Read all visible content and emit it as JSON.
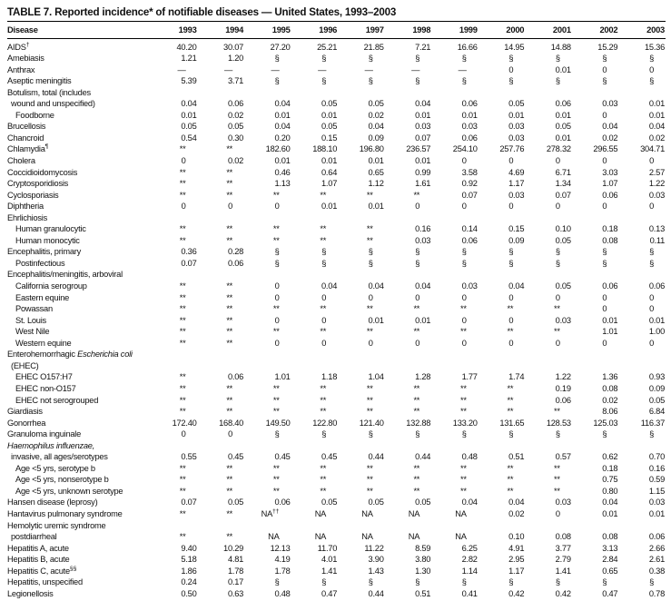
{
  "title": "TABLE 7. Reported incidence* of notifiable diseases — United States, 1993–2003",
  "columns": [
    "Disease",
    "1993",
    "1994",
    "1995",
    "1996",
    "1997",
    "1998",
    "1999",
    "2000",
    "2001",
    "2002",
    "2003"
  ],
  "rows": [
    {
      "label": "AIDS",
      "sup": "†",
      "indent": 0,
      "values": [
        "40.20",
        "30.07",
        "27.20",
        "25.21",
        "21.85",
        "7.21",
        "16.66",
        "14.95",
        "14.88",
        "15.29",
        "15.36"
      ]
    },
    {
      "label": "Amebiasis",
      "indent": 0,
      "values": [
        "1.21",
        "1.20",
        "§",
        "§",
        "§",
        "§",
        "§",
        "§",
        "§",
        "§",
        "§"
      ]
    },
    {
      "label": "Anthrax",
      "indent": 0,
      "values": [
        "—",
        "—",
        "—",
        "—",
        "—",
        "—",
        "—",
        "0",
        "0.01",
        "0",
        "0"
      ]
    },
    {
      "label": "Aseptic meningitis",
      "indent": 0,
      "values": [
        "5.39",
        "3.71",
        "§",
        "§",
        "§",
        "§",
        "§",
        "§",
        "§",
        "§",
        "§"
      ]
    },
    {
      "label": "Botulism, total (includes",
      "indent": 0,
      "values": []
    },
    {
      "label": "wound and unspecified)",
      "indent": 1,
      "values": [
        "0.04",
        "0.06",
        "0.04",
        "0.05",
        "0.05",
        "0.04",
        "0.06",
        "0.05",
        "0.06",
        "0.03",
        "0.01"
      ]
    },
    {
      "label": "Foodborne",
      "indent": 2,
      "values": [
        "0.01",
        "0.02",
        "0.01",
        "0.01",
        "0.02",
        "0.01",
        "0.01",
        "0.01",
        "0.01",
        "0",
        "0.01"
      ]
    },
    {
      "label": "Brucellosis",
      "indent": 0,
      "values": [
        "0.05",
        "0.05",
        "0.04",
        "0.05",
        "0.04",
        "0.03",
        "0.03",
        "0.03",
        "0.05",
        "0.04",
        "0.04"
      ]
    },
    {
      "label": "Chancroid",
      "indent": 0,
      "values": [
        "0.54",
        "0.30",
        "0.20",
        "0.15",
        "0.09",
        "0.07",
        "0.06",
        "0.03",
        "0.01",
        "0.02",
        "0.02"
      ]
    },
    {
      "label": "Chlamydia",
      "sup": "¶",
      "indent": 0,
      "values": [
        "**",
        "**",
        "182.60",
        "188.10",
        "196.80",
        "236.57",
        "254.10",
        "257.76",
        "278.32",
        "296.55",
        "304.71"
      ]
    },
    {
      "label": "Cholera",
      "indent": 0,
      "values": [
        "0",
        "0.02",
        "0.01",
        "0.01",
        "0.01",
        "0.01",
        "0",
        "0",
        "0",
        "0",
        "0"
      ]
    },
    {
      "label": "Coccidioidomycosis",
      "indent": 0,
      "values": [
        "**",
        "**",
        "0.46",
        "0.64",
        "0.65",
        "0.99",
        "3.58",
        "4.69",
        "6.71",
        "3.03",
        "2.57"
      ]
    },
    {
      "label": "Cryptosporidiosis",
      "indent": 0,
      "values": [
        "**",
        "**",
        "1.13",
        "1.07",
        "1.12",
        "1.61",
        "0.92",
        "1.17",
        "1.34",
        "1.07",
        "1.22"
      ]
    },
    {
      "label": "Cyclosporiasis",
      "indent": 0,
      "values": [
        "**",
        "**",
        "**",
        "**",
        "**",
        "**",
        "0.07",
        "0.03",
        "0.07",
        "0.06",
        "0.03"
      ]
    },
    {
      "label": "Diphtheria",
      "indent": 0,
      "values": [
        "0",
        "0",
        "0",
        "0.01",
        "0.01",
        "0",
        "0",
        "0",
        "0",
        "0",
        "0"
      ]
    },
    {
      "label": "Ehrlichiosis",
      "indent": 0,
      "values": []
    },
    {
      "label": "Human granulocytic",
      "indent": 2,
      "values": [
        "**",
        "**",
        "**",
        "**",
        "**",
        "0.16",
        "0.14",
        "0.15",
        "0.10",
        "0.18",
        "0.13"
      ]
    },
    {
      "label": "Human monocytic",
      "indent": 2,
      "values": [
        "**",
        "**",
        "**",
        "**",
        "**",
        "0.03",
        "0.06",
        "0.09",
        "0.05",
        "0.08",
        "0.11"
      ]
    },
    {
      "label": "Encephalitis, primary",
      "indent": 0,
      "values": [
        "0.36",
        "0.28",
        "§",
        "§",
        "§",
        "§",
        "§",
        "§",
        "§",
        "§",
        "§"
      ]
    },
    {
      "label": "Postinfectious",
      "indent": 2,
      "values": [
        "0.07",
        "0.06",
        "§",
        "§",
        "§",
        "§",
        "§",
        "§",
        "§",
        "§",
        "§"
      ]
    },
    {
      "label": "Encephalitis/meningitis, arboviral",
      "indent": 0,
      "values": []
    },
    {
      "label": "California serogroup",
      "indent": 2,
      "values": [
        "**",
        "**",
        "0",
        "0.04",
        "0.04",
        "0.04",
        "0.03",
        "0.04",
        "0.05",
        "0.06",
        "0.06"
      ]
    },
    {
      "label": "Eastern equine",
      "indent": 2,
      "values": [
        "**",
        "**",
        "0",
        "0",
        "0",
        "0",
        "0",
        "0",
        "0",
        "0",
        "0"
      ]
    },
    {
      "label": "Powassan",
      "indent": 2,
      "values": [
        "**",
        "**",
        "**",
        "**",
        "**",
        "**",
        "**",
        "**",
        "**",
        "0",
        "0"
      ]
    },
    {
      "label": "St. Louis",
      "indent": 2,
      "values": [
        "**",
        "**",
        "0",
        "0",
        "0.01",
        "0.01",
        "0",
        "0",
        "0.03",
        "0.01",
        "0.01"
      ]
    },
    {
      "label": "West Nile",
      "indent": 2,
      "values": [
        "**",
        "**",
        "**",
        "**",
        "**",
        "**",
        "**",
        "**",
        "**",
        "1.01",
        "1.00"
      ]
    },
    {
      "label": "Western equine",
      "indent": 2,
      "values": [
        "**",
        "**",
        "0",
        "0",
        "0",
        "0",
        "0",
        "0",
        "0",
        "0",
        "0"
      ]
    },
    {
      "label": "Enterohemorrhagic ",
      "italic": "Escherichia coli",
      "indent": 0,
      "values": []
    },
    {
      "label": "(EHEC)",
      "indent": 1,
      "values": []
    },
    {
      "label": "EHEC O157:H7",
      "indent": 2,
      "values": [
        "**",
        "0.06",
        "1.01",
        "1.18",
        "1.04",
        "1.28",
        "1.77",
        "1.74",
        "1.22",
        "1.36",
        "0.93"
      ]
    },
    {
      "label": "EHEC non-O157",
      "indent": 2,
      "values": [
        "**",
        "**",
        "**",
        "**",
        "**",
        "**",
        "**",
        "**",
        "0.19",
        "0.08",
        "0.09"
      ]
    },
    {
      "label": "EHEC not serogrouped",
      "indent": 2,
      "values": [
        "**",
        "**",
        "**",
        "**",
        "**",
        "**",
        "**",
        "**",
        "0.06",
        "0.02",
        "0.05"
      ]
    },
    {
      "label": "Giardiasis",
      "indent": 0,
      "values": [
        "**",
        "**",
        "**",
        "**",
        "**",
        "**",
        "**",
        "**",
        "**",
        "8.06",
        "6.84"
      ]
    },
    {
      "label": "Gonorrhea",
      "indent": 0,
      "values": [
        "172.40",
        "168.40",
        "149.50",
        "122.80",
        "121.40",
        "132.88",
        "133.20",
        "131.65",
        "128.53",
        "125.03",
        "116.37"
      ]
    },
    {
      "label": "Granuloma inguinale",
      "indent": 0,
      "values": [
        "0",
        "0",
        "§",
        "§",
        "§",
        "§",
        "§",
        "§",
        "§",
        "§",
        "§"
      ]
    },
    {
      "label": "",
      "italic": "Haemophilus influenzae,",
      "indent": 0,
      "values": []
    },
    {
      "label": "invasive, all ages/serotypes",
      "indent": 1,
      "values": [
        "0.55",
        "0.45",
        "0.45",
        "0.45",
        "0.44",
        "0.44",
        "0.48",
        "0.51",
        "0.57",
        "0.62",
        "0.70"
      ]
    },
    {
      "label": "Age <5 yrs, serotype b",
      "indent": 2,
      "values": [
        "**",
        "**",
        "**",
        "**",
        "**",
        "**",
        "**",
        "**",
        "**",
        "0.18",
        "0.16"
      ]
    },
    {
      "label": "Age <5 yrs, nonserotype b",
      "indent": 2,
      "values": [
        "**",
        "**",
        "**",
        "**",
        "**",
        "**",
        "**",
        "**",
        "**",
        "0.75",
        "0.59"
      ]
    },
    {
      "label": "Age <5 yrs, unknown serotype",
      "indent": 2,
      "values": [
        "**",
        "**",
        "**",
        "**",
        "**",
        "**",
        "**",
        "**",
        "**",
        "0.80",
        "1.15"
      ]
    },
    {
      "label": "Hansen disease (leprosy)",
      "indent": 0,
      "values": [
        "0.07",
        "0.05",
        "0.06",
        "0.05",
        "0.05",
        "0.05",
        "0.04",
        "0.04",
        "0.03",
        "0.04",
        "0.03"
      ]
    },
    {
      "label": "Hantavirus pulmonary syndrome",
      "indent": 0,
      "values": [
        "**",
        "**",
        "NA††",
        "NA",
        "NA",
        "NA",
        "NA",
        "0.02",
        "0",
        "0.01",
        "0.01"
      ]
    },
    {
      "label": "Hemolytic uremic syndrome",
      "indent": 0,
      "values": []
    },
    {
      "label": "postdiarrheal",
      "indent": 1,
      "values": [
        "**",
        "**",
        "NA",
        "NA",
        "NA",
        "NA",
        "NA",
        "0.10",
        "0.08",
        "0.08",
        "0.06"
      ]
    },
    {
      "label": "Hepatitis A, acute",
      "indent": 0,
      "values": [
        "9.40",
        "10.29",
        "12.13",
        "11.70",
        "11.22",
        "8.59",
        "6.25",
        "4.91",
        "3.77",
        "3.13",
        "2.66"
      ]
    },
    {
      "label": "Hepatitis B, acute",
      "indent": 0,
      "values": [
        "5.18",
        "4.81",
        "4.19",
        "4.01",
        "3.90",
        "3.80",
        "2.82",
        "2.95",
        "2.79",
        "2.84",
        "2.61"
      ]
    },
    {
      "label": "Hepatitis C, acute",
      "sup": "§§",
      "indent": 0,
      "values": [
        "1.86",
        "1.78",
        "1.78",
        "1.41",
        "1.43",
        "1.30",
        "1.14",
        "1.17",
        "1.41",
        "0.65",
        "0.38"
      ]
    },
    {
      "label": "Hepatitis, unspecified",
      "indent": 0,
      "values": [
        "0.24",
        "0.17",
        "§",
        "§",
        "§",
        "§",
        "§",
        "§",
        "§",
        "§",
        "§"
      ]
    },
    {
      "label": "Legionellosis",
      "indent": 0,
      "values": [
        "0.50",
        "0.63",
        "0.48",
        "0.47",
        "0.44",
        "0.51",
        "0.41",
        "0.42",
        "0.42",
        "0.47",
        "0.78"
      ]
    }
  ]
}
